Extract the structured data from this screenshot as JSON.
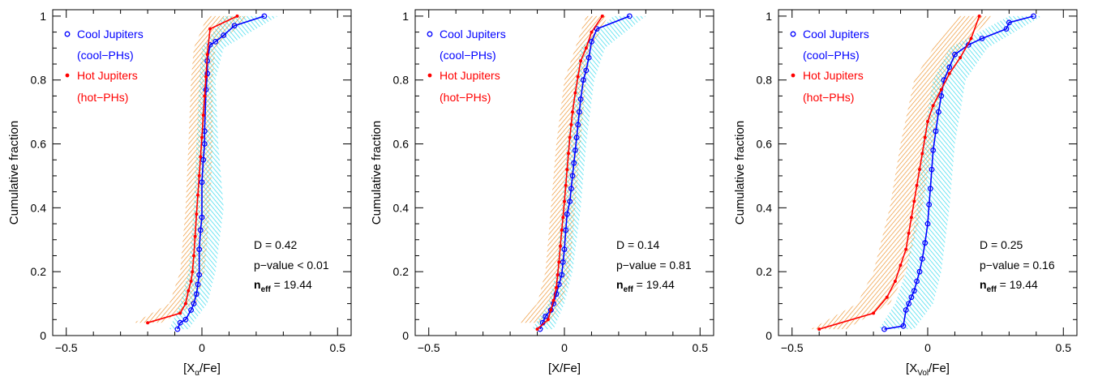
{
  "figure": {
    "ylabel": "Cumulative fraction",
    "yticks": [
      "0",
      "0.2",
      "0.4",
      "0.6",
      "0.8",
      "1"
    ],
    "xticks": [
      "−0.5",
      "0",
      "0.5"
    ]
  },
  "legend": {
    "cool_label": "Cool Jupiters",
    "cool_sub": "(cool−PHs)",
    "hot_label": "Hot Jupiters",
    "hot_sub": "(hot−PHs)"
  },
  "colors": {
    "cool_line": "#0000ff",
    "cool_band": "#00d0e8",
    "hot_line": "#ff0000",
    "hot_band": "#e87a00",
    "axis": "#000000"
  },
  "chart_data": [
    {
      "type": "line",
      "xlabel": "[X_α/Fe]",
      "xlabel_main": "[X",
      "xlabel_sub": "α",
      "xlabel_tail": "/Fe]",
      "ylabel": "Cumulative fraction",
      "xlim": [
        -0.55,
        0.55
      ],
      "ylim": [
        0,
        1.02
      ],
      "legend_position": "top-left",
      "stats": {
        "d": "D = 0.42",
        "p": "p−value < 0.01",
        "n_main": "n",
        "n_sub": "eff",
        "n_tail": " = 19.44"
      },
      "series": [
        {
          "name": "Cool Jupiters",
          "x": [
            -0.09,
            -0.08,
            -0.06,
            -0.04,
            -0.03,
            -0.02,
            -0.015,
            -0.01,
            -0.01,
            -0.005,
            0.0,
            0.0,
            0.005,
            0.01,
            0.01,
            0.015,
            0.02,
            0.02,
            0.03,
            0.05,
            0.08,
            0.12,
            0.23
          ],
          "y": [
            0.02,
            0.04,
            0.05,
            0.08,
            0.1,
            0.13,
            0.16,
            0.19,
            0.27,
            0.33,
            0.37,
            0.48,
            0.55,
            0.6,
            0.64,
            0.77,
            0.82,
            0.86,
            0.91,
            0.92,
            0.94,
            0.97,
            1.0
          ]
        },
        {
          "name": "Hot Jupiters",
          "x": [
            -0.2,
            -0.08,
            -0.06,
            -0.05,
            -0.04,
            -0.035,
            -0.03,
            -0.025,
            -0.02,
            -0.015,
            -0.01,
            -0.005,
            0.0,
            0.005,
            0.01,
            0.015,
            0.02,
            0.03,
            0.13
          ],
          "y": [
            0.04,
            0.07,
            0.1,
            0.14,
            0.17,
            0.2,
            0.25,
            0.31,
            0.38,
            0.44,
            0.5,
            0.56,
            0.62,
            0.69,
            0.75,
            0.81,
            0.88,
            0.96,
            1.0
          ]
        }
      ],
      "bands": [
        {
          "name": "Cool Jupiters",
          "y": [
            0.02,
            0.1,
            0.2,
            0.4,
            0.6,
            0.8,
            0.9,
            1.0
          ],
          "lo": [
            -0.12,
            -0.08,
            -0.05,
            -0.03,
            -0.02,
            -0.01,
            0.0,
            0.08
          ],
          "hi": [
            -0.05,
            0.02,
            0.05,
            0.08,
            0.06,
            0.05,
            0.08,
            0.28
          ]
        },
        {
          "name": "Hot Jupiters",
          "y": [
            0.04,
            0.1,
            0.2,
            0.4,
            0.6,
            0.8,
            0.9,
            1.0
          ],
          "lo": [
            -0.25,
            -0.12,
            -0.08,
            -0.06,
            -0.05,
            -0.04,
            -0.03,
            0.02
          ],
          "hi": [
            -0.15,
            -0.02,
            0.01,
            0.03,
            0.04,
            0.04,
            0.05,
            0.17
          ]
        }
      ]
    },
    {
      "type": "line",
      "xlabel": "[X/Fe]",
      "xlabel_main": "[X/Fe]",
      "xlabel_sub": "",
      "xlabel_tail": "",
      "ylabel": "Cumulative fraction",
      "xlim": [
        -0.55,
        0.55
      ],
      "ylim": [
        0,
        1.02
      ],
      "legend_position": "top-left",
      "stats": {
        "d": "D = 0.14",
        "p": "p−value = 0.81",
        "n_main": "n",
        "n_sub": "eff",
        "n_tail": " = 19.44"
      },
      "series": [
        {
          "name": "Cool Jupiters",
          "x": [
            -0.09,
            -0.08,
            -0.07,
            -0.05,
            -0.04,
            -0.03,
            -0.02,
            -0.01,
            -0.005,
            0.0,
            0.005,
            0.01,
            0.02,
            0.025,
            0.03,
            0.035,
            0.04,
            0.045,
            0.05,
            0.055,
            0.06,
            0.07,
            0.08,
            0.09,
            0.1,
            0.12,
            0.24
          ],
          "y": [
            0.02,
            0.04,
            0.06,
            0.08,
            0.1,
            0.13,
            0.16,
            0.19,
            0.23,
            0.27,
            0.33,
            0.38,
            0.42,
            0.46,
            0.5,
            0.54,
            0.58,
            0.62,
            0.66,
            0.7,
            0.74,
            0.8,
            0.83,
            0.87,
            0.92,
            0.96,
            1.0
          ]
        },
        {
          "name": "Hot Jupiters",
          "x": [
            -0.1,
            -0.06,
            -0.05,
            -0.04,
            -0.03,
            -0.025,
            -0.02,
            -0.015,
            -0.01,
            -0.005,
            0.0,
            0.005,
            0.01,
            0.015,
            0.02,
            0.025,
            0.03,
            0.04,
            0.05,
            0.06,
            0.08,
            0.1,
            0.14
          ],
          "y": [
            0.02,
            0.05,
            0.08,
            0.11,
            0.15,
            0.19,
            0.23,
            0.28,
            0.33,
            0.37,
            0.42,
            0.47,
            0.52,
            0.57,
            0.62,
            0.66,
            0.7,
            0.76,
            0.81,
            0.86,
            0.9,
            0.95,
            1.0
          ]
        }
      ],
      "bands": [
        {
          "name": "Cool Jupiters",
          "y": [
            0.02,
            0.1,
            0.2,
            0.4,
            0.6,
            0.8,
            0.9,
            1.0
          ],
          "lo": [
            -0.12,
            -0.06,
            -0.03,
            -0.01,
            0.01,
            0.04,
            0.06,
            0.18
          ],
          "hi": [
            -0.04,
            0.0,
            0.03,
            0.06,
            0.08,
            0.11,
            0.15,
            0.3
          ]
        },
        {
          "name": "Hot Jupiters",
          "y": [
            0.04,
            0.1,
            0.2,
            0.4,
            0.6,
            0.8,
            0.9,
            1.0
          ],
          "lo": [
            -0.17,
            -0.1,
            -0.07,
            -0.05,
            -0.03,
            0.0,
            0.04,
            0.08
          ],
          "hi": [
            -0.06,
            -0.01,
            0.02,
            0.04,
            0.06,
            0.08,
            0.1,
            0.16
          ]
        }
      ]
    },
    {
      "type": "line",
      "xlabel": "[X_Vol/Fe]",
      "xlabel_main": "[X",
      "xlabel_sub": "Vol",
      "xlabel_tail": "/Fe]",
      "ylabel": "Cumulative fraction",
      "xlim": [
        -0.55,
        0.55
      ],
      "ylim": [
        0,
        1.02
      ],
      "legend_position": "top-left",
      "stats": {
        "d": "D = 0.25",
        "p": "p−value = 0.16",
        "n_main": "n",
        "n_sub": "eff",
        "n_tail": " = 19.44"
      },
      "series": [
        {
          "name": "Cool Jupiters",
          "x": [
            -0.16,
            -0.09,
            -0.08,
            -0.07,
            -0.06,
            -0.05,
            -0.04,
            -0.03,
            -0.02,
            -0.01,
            0.0,
            0.005,
            0.01,
            0.015,
            0.02,
            0.03,
            0.04,
            0.05,
            0.06,
            0.08,
            0.1,
            0.15,
            0.2,
            0.29,
            0.3,
            0.39
          ],
          "y": [
            0.02,
            0.03,
            0.08,
            0.1,
            0.12,
            0.14,
            0.17,
            0.2,
            0.24,
            0.29,
            0.35,
            0.41,
            0.46,
            0.52,
            0.58,
            0.64,
            0.7,
            0.75,
            0.8,
            0.84,
            0.88,
            0.91,
            0.93,
            0.96,
            0.98,
            1.0
          ]
        },
        {
          "name": "Hot Jupiters",
          "x": [
            -0.4,
            -0.2,
            -0.15,
            -0.12,
            -0.1,
            -0.08,
            -0.07,
            -0.06,
            -0.05,
            -0.04,
            -0.03,
            -0.02,
            -0.01,
            0.0,
            0.02,
            0.05,
            0.08,
            0.12,
            0.16,
            0.19
          ],
          "y": [
            0.02,
            0.07,
            0.12,
            0.17,
            0.22,
            0.27,
            0.32,
            0.37,
            0.42,
            0.47,
            0.52,
            0.57,
            0.62,
            0.67,
            0.72,
            0.77,
            0.82,
            0.87,
            0.93,
            1.0
          ]
        }
      ],
      "bands": [
        {
          "name": "Cool Jupiters",
          "y": [
            0.02,
            0.1,
            0.2,
            0.4,
            0.6,
            0.8,
            0.9,
            1.0
          ],
          "lo": [
            -0.18,
            -0.12,
            -0.08,
            -0.04,
            -0.02,
            0.02,
            0.08,
            0.3
          ],
          "hi": [
            -0.05,
            0.02,
            0.05,
            0.08,
            0.1,
            0.14,
            0.22,
            0.42
          ]
        },
        {
          "name": "Hot Jupiters",
          "y": [
            0.02,
            0.1,
            0.2,
            0.4,
            0.6,
            0.8,
            0.9,
            1.0
          ],
          "lo": [
            -0.43,
            -0.26,
            -0.2,
            -0.14,
            -0.1,
            -0.05,
            0.02,
            0.12
          ],
          "hi": [
            -0.3,
            -0.14,
            -0.08,
            -0.02,
            0.02,
            0.06,
            0.12,
            0.24
          ]
        }
      ]
    }
  ]
}
